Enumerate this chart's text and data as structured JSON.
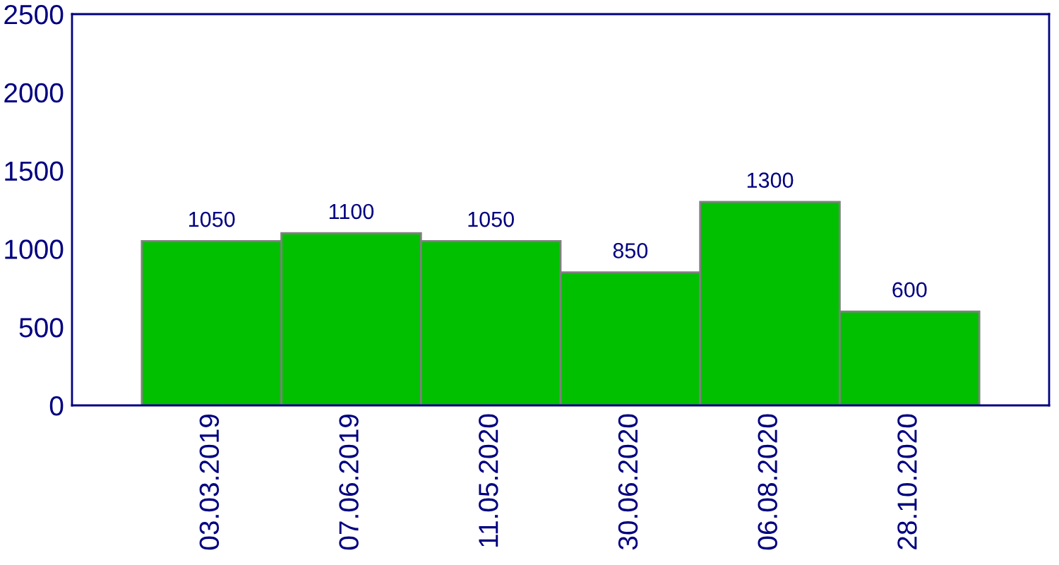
{
  "chart_data": {
    "type": "bar",
    "categories": [
      "03.03.2019",
      "07.06.2019",
      "11.05.2020",
      "30.06.2020",
      "06.08.2020",
      "28.10.2020"
    ],
    "values": [
      1050,
      1100,
      1050,
      850,
      1300,
      600
    ],
    "color": "#00c000",
    "ylim": [
      0,
      2500
    ],
    "yticks": [
      0,
      500,
      1000,
      1500,
      2000,
      2500
    ],
    "data_labels": true,
    "grid": false,
    "legend": false
  }
}
